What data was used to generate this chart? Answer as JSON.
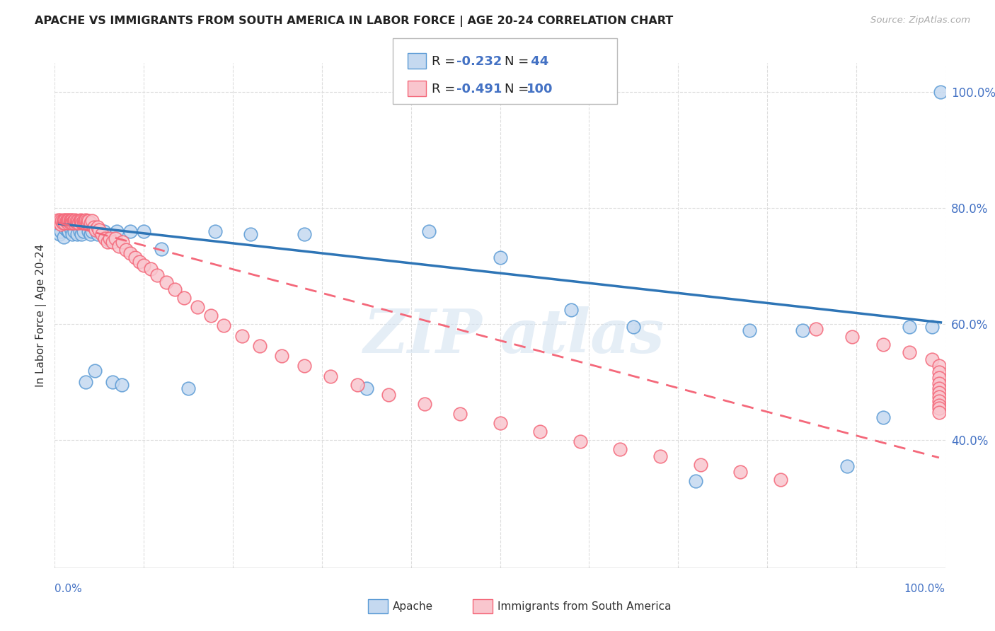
{
  "title": "APACHE VS IMMIGRANTS FROM SOUTH AMERICA IN LABOR FORCE | AGE 20-24 CORRELATION CHART",
  "source": "Source: ZipAtlas.com",
  "ylabel": "In Labor Force | Age 20-24",
  "legend_apache_r": "-0.232",
  "legend_apache_n": "44",
  "legend_immigrants_r": "-0.491",
  "legend_immigrants_n": "100",
  "legend_label_apache": "Apache",
  "legend_label_immigrants": "Immigrants from South America",
  "watermark_line1": "ZIP",
  "watermark_line2": "atlas",
  "apache_face_color": "#c5d9f0",
  "apache_edge_color": "#5b9bd5",
  "apache_line_color": "#2e75b6",
  "immigrants_face_color": "#f9c6ce",
  "immigrants_edge_color": "#f4687a",
  "immigrants_line_color": "#f4687a",
  "background_color": "#ffffff",
  "grid_color": "#dddddd",
  "xlim": [
    0.0,
    1.0
  ],
  "ylim": [
    0.18,
    1.05
  ],
  "ytick_positions": [
    0.4,
    0.6,
    0.8,
    1.0
  ],
  "ytick_labels": [
    "40.0%",
    "60.0%",
    "80.0%",
    "100.0%"
  ],
  "apache_x": [
    0.005,
    0.007,
    0.01,
    0.012,
    0.015,
    0.016,
    0.018,
    0.02,
    0.022,
    0.025,
    0.028,
    0.03,
    0.032,
    0.035,
    0.038,
    0.04,
    0.042,
    0.045,
    0.048,
    0.055,
    0.06,
    0.065,
    0.07,
    0.075,
    0.085,
    0.1,
    0.12,
    0.15,
    0.18,
    0.22,
    0.28,
    0.35,
    0.42,
    0.5,
    0.58,
    0.65,
    0.72,
    0.78,
    0.84,
    0.89,
    0.93,
    0.96,
    0.985,
    0.995
  ],
  "apache_y": [
    0.755,
    0.76,
    0.75,
    0.765,
    0.76,
    0.76,
    0.765,
    0.755,
    0.76,
    0.755,
    0.76,
    0.755,
    0.76,
    0.5,
    0.76,
    0.755,
    0.76,
    0.52,
    0.755,
    0.76,
    0.745,
    0.5,
    0.76,
    0.495,
    0.76,
    0.76,
    0.73,
    0.49,
    0.76,
    0.755,
    0.755,
    0.49,
    0.76,
    0.715,
    0.625,
    0.595,
    0.33,
    0.59,
    0.59,
    0.355,
    0.44,
    0.595,
    0.595,
    1.0
  ],
  "immigrants_x": [
    0.004,
    0.005,
    0.006,
    0.007,
    0.008,
    0.009,
    0.01,
    0.01,
    0.011,
    0.012,
    0.013,
    0.014,
    0.015,
    0.015,
    0.016,
    0.017,
    0.018,
    0.018,
    0.019,
    0.02,
    0.02,
    0.021,
    0.022,
    0.022,
    0.023,
    0.024,
    0.025,
    0.026,
    0.027,
    0.028,
    0.029,
    0.03,
    0.031,
    0.032,
    0.033,
    0.034,
    0.035,
    0.036,
    0.037,
    0.038,
    0.04,
    0.042,
    0.044,
    0.046,
    0.048,
    0.05,
    0.053,
    0.056,
    0.059,
    0.062,
    0.065,
    0.068,
    0.072,
    0.076,
    0.08,
    0.085,
    0.09,
    0.095,
    0.1,
    0.108,
    0.115,
    0.125,
    0.135,
    0.145,
    0.16,
    0.175,
    0.19,
    0.21,
    0.23,
    0.255,
    0.28,
    0.31,
    0.34,
    0.375,
    0.415,
    0.455,
    0.5,
    0.545,
    0.59,
    0.635,
    0.68,
    0.725,
    0.77,
    0.815,
    0.855,
    0.895,
    0.93,
    0.96,
    0.985,
    0.993,
    0.993,
    0.993,
    0.993,
    0.993,
    0.993,
    0.993,
    0.993,
    0.993,
    0.993,
    0.993
  ],
  "immigrants_y": [
    0.78,
    0.775,
    0.78,
    0.772,
    0.778,
    0.775,
    0.78,
    0.778,
    0.775,
    0.78,
    0.778,
    0.78,
    0.775,
    0.778,
    0.78,
    0.778,
    0.775,
    0.78,
    0.778,
    0.78,
    0.775,
    0.778,
    0.775,
    0.778,
    0.78,
    0.778,
    0.775,
    0.778,
    0.775,
    0.778,
    0.78,
    0.778,
    0.775,
    0.778,
    0.775,
    0.778,
    0.78,
    0.778,
    0.775,
    0.778,
    0.775,
    0.778,
    0.768,
    0.762,
    0.768,
    0.762,
    0.755,
    0.748,
    0.742,
    0.748,
    0.742,
    0.748,
    0.735,
    0.742,
    0.728,
    0.722,
    0.715,
    0.708,
    0.702,
    0.695,
    0.685,
    0.672,
    0.66,
    0.645,
    0.63,
    0.615,
    0.598,
    0.58,
    0.562,
    0.545,
    0.528,
    0.51,
    0.495,
    0.478,
    0.462,
    0.445,
    0.43,
    0.415,
    0.398,
    0.385,
    0.372,
    0.358,
    0.345,
    0.332,
    0.592,
    0.578,
    0.565,
    0.552,
    0.54,
    0.528,
    0.518,
    0.508,
    0.498,
    0.49,
    0.482,
    0.475,
    0.468,
    0.46,
    0.455,
    0.448
  ],
  "apache_trendline_x": [
    0.005,
    0.995
  ],
  "apache_trendline_y": [
    0.773,
    0.603
  ],
  "immigrants_trendline_x": [
    0.004,
    0.993
  ],
  "immigrants_trendline_y": [
    0.775,
    0.37
  ]
}
